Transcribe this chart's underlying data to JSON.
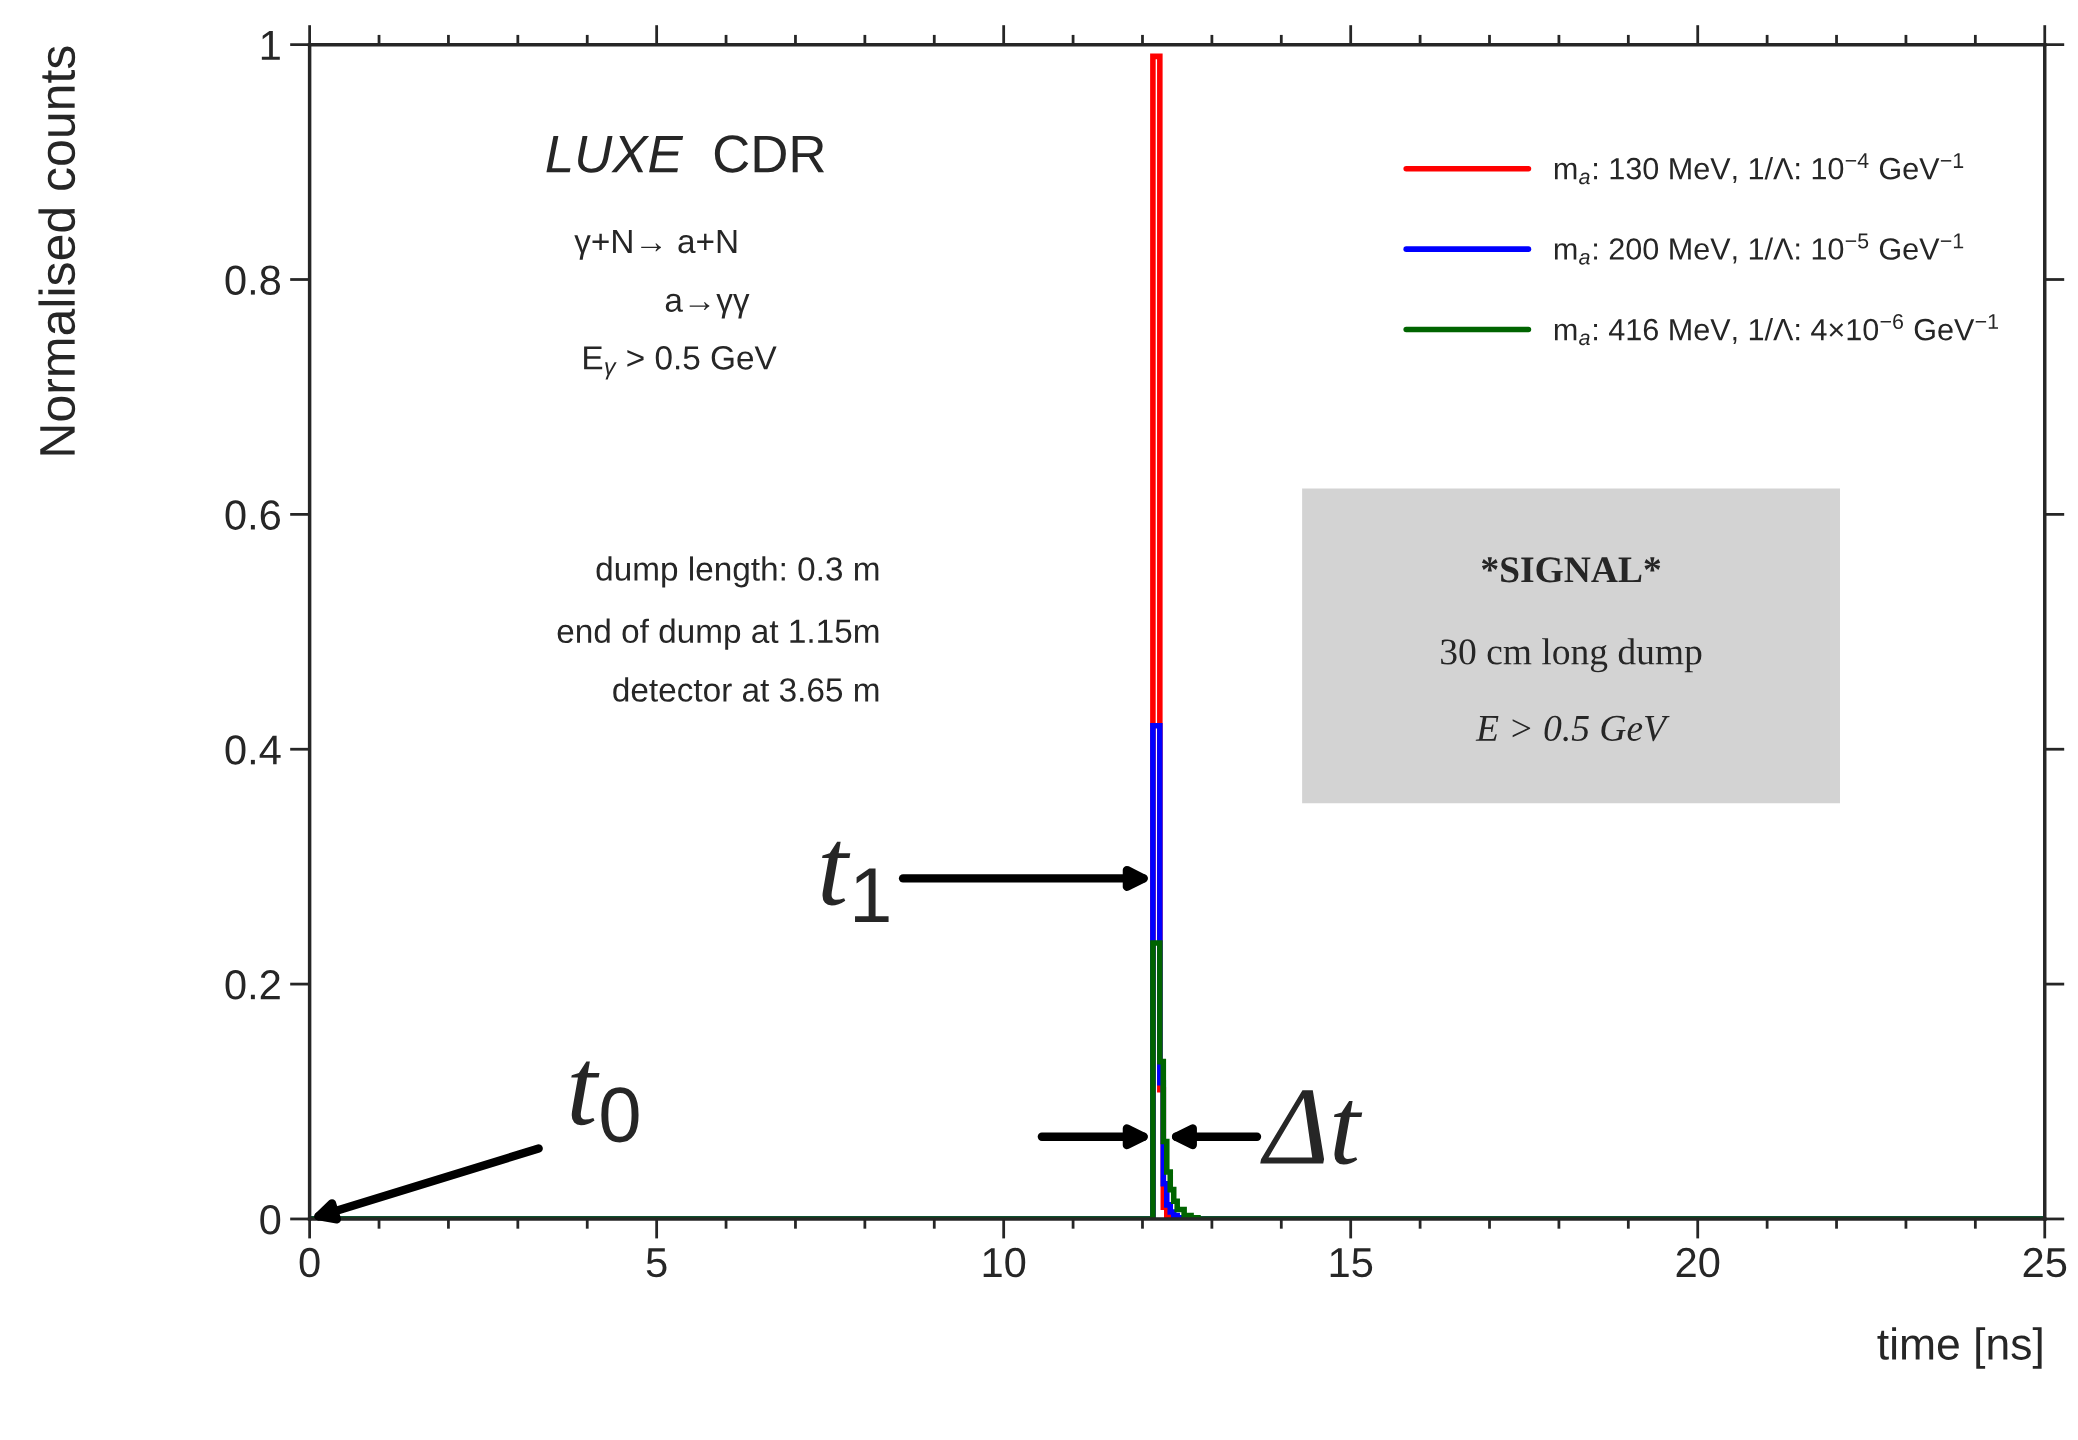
{
  "chart_data": {
    "type": "histogram",
    "xlabel": "time [ns]",
    "ylabel": "Normalised counts",
    "bins": [
      0,
      12.15,
      12.2,
      12.25,
      12.3,
      12.35,
      12.4,
      12.45,
      12.5,
      12.6,
      12.7,
      12.8,
      25
    ],
    "series": [
      {
        "name": "m$_{a}$: 130 MeV, 1/Λ: 10$^{−4}$ GeV$^{−1}$",
        "color": "#ff0000",
        "values": [
          0,
          0.99,
          0.99,
          0.11,
          0.01,
          0.003,
          0,
          0,
          0,
          0,
          0,
          0
        ]
      },
      {
        "name": "m$_{a}$: 200 MeV, 1/Λ: 10$^{−5}$ GeV$^{−1}$",
        "color": "#0000ff",
        "values": [
          0,
          0.42,
          0.42,
          0.116,
          0.03,
          0.012,
          0.006,
          0.003,
          0.001,
          0,
          0,
          0
        ]
      },
      {
        "name": "m$_{a}$: 416 MeV, 1/Λ: 4×10$^{−6}$ GeV$^{−1}$",
        "color": "#006400",
        "values": [
          0,
          0.235,
          0.235,
          0.134,
          0.066,
          0.04,
          0.025,
          0.015,
          0.008,
          0.003,
          0.001,
          0
        ]
      }
    ],
    "xlim": [
      0,
      25
    ],
    "ylim": [
      0,
      1
    ],
    "xticks": [
      0,
      5,
      10,
      15,
      20,
      25
    ],
    "yticks": [
      0,
      0.2,
      0.4,
      0.6,
      0.8,
      1
    ],
    "legend": "top right",
    "grid": false,
    "annotations": [
      "LUXE",
      "CDR",
      "γ+N→ a+N",
      "a→γγ",
      "E$_{γ}$ > 0.5 GeV",
      "dump length: 0.3 m",
      "end of dump at 1.15m",
      "detector at 3.65 m",
      "*SIGNAL*",
      "30 cm long dump",
      "E > 0.5 GeV",
      {
        "text": "t$_{0}$",
        "x": 0,
        "y": 0
      },
      {
        "text": "t$_{1}$",
        "x": 12.15,
        "y": 0.29
      },
      {
        "text": "Δt",
        "x": 12.25,
        "y": 0.07
      }
    ]
  }
}
